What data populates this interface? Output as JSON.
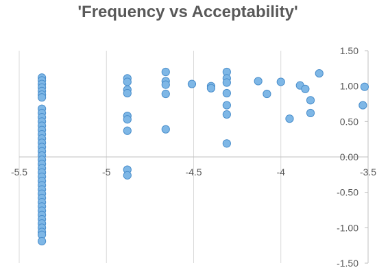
{
  "chart_data": {
    "type": "scatter",
    "title": "'Frequency vs Acceptability'",
    "xlabel": "",
    "ylabel": "",
    "xlim": [
      -5.5,
      -3.5
    ],
    "ylim": [
      -1.5,
      1.5
    ],
    "x_ticks": [
      -5.5,
      -5,
      -4.5,
      -4,
      -3.5
    ],
    "x_tick_labels": [
      "-5.5",
      "-5",
      "-4.5",
      "-4",
      "-3.5"
    ],
    "y_ticks": [
      1.5,
      1.0,
      0.5,
      0.0,
      -0.5,
      -1.0,
      -1.5
    ],
    "y_tick_labels": [
      "1.50",
      "1.00",
      "0.50",
      "0.00",
      "-0.50",
      "-1.00",
      "-1.50"
    ],
    "grid": "vertical",
    "legend": "none",
    "marker_color": "#7eb7e6",
    "marker_edge": "#4a8ecb",
    "series": [
      {
        "points": [
          [
            -5.37,
            1.12
          ],
          [
            -5.37,
            1.08
          ],
          [
            -5.37,
            1.03
          ],
          [
            -5.37,
            0.98
          ],
          [
            -5.37,
            0.93
          ],
          [
            -5.37,
            0.88
          ],
          [
            -5.37,
            0.84
          ],
          [
            -5.37,
            0.68
          ],
          [
            -5.37,
            0.62
          ],
          [
            -5.37,
            0.56
          ],
          [
            -5.37,
            0.5
          ],
          [
            -5.37,
            0.44
          ],
          [
            -5.37,
            0.38
          ],
          [
            -5.37,
            0.32
          ],
          [
            -5.37,
            0.26
          ],
          [
            -5.37,
            0.2
          ],
          [
            -5.37,
            0.14
          ],
          [
            -5.37,
            0.08
          ],
          [
            -5.37,
            0.02
          ],
          [
            -5.37,
            -0.04
          ],
          [
            -5.37,
            -0.1
          ],
          [
            -5.37,
            -0.16
          ],
          [
            -5.37,
            -0.22
          ],
          [
            -5.37,
            -0.28
          ],
          [
            -5.37,
            -0.34
          ],
          [
            -5.37,
            -0.4
          ],
          [
            -5.37,
            -0.46
          ],
          [
            -5.37,
            -0.52
          ],
          [
            -5.37,
            -0.58
          ],
          [
            -5.37,
            -0.64
          ],
          [
            -5.37,
            -0.7
          ],
          [
            -5.37,
            -0.76
          ],
          [
            -5.37,
            -0.82
          ],
          [
            -5.37,
            -0.88
          ],
          [
            -5.37,
            -0.94
          ],
          [
            -5.37,
            -1.0
          ],
          [
            -5.37,
            -1.06
          ],
          [
            -5.37,
            -1.1
          ],
          [
            -5.37,
            -1.19
          ],
          [
            -4.88,
            1.11
          ],
          [
            -4.88,
            1.06
          ],
          [
            -4.88,
            0.95
          ],
          [
            -4.88,
            0.9
          ],
          [
            -4.88,
            0.58
          ],
          [
            -4.88,
            0.53
          ],
          [
            -4.88,
            0.37
          ],
          [
            -4.88,
            -0.18
          ],
          [
            -4.88,
            -0.26
          ],
          [
            -4.66,
            1.2
          ],
          [
            -4.66,
            1.07
          ],
          [
            -4.66,
            1.02
          ],
          [
            -4.66,
            0.89
          ],
          [
            -4.66,
            0.39
          ],
          [
            -4.51,
            1.03
          ],
          [
            -4.4,
            1.0
          ],
          [
            -4.4,
            0.97
          ],
          [
            -4.31,
            1.2
          ],
          [
            -4.31,
            1.11
          ],
          [
            -4.31,
            1.05
          ],
          [
            -4.31,
            0.9
          ],
          [
            -4.31,
            0.73
          ],
          [
            -4.31,
            0.6
          ],
          [
            -4.31,
            0.19
          ],
          [
            -4.13,
            1.07
          ],
          [
            -4.08,
            0.89
          ],
          [
            -4.0,
            1.06
          ],
          [
            -3.95,
            0.54
          ],
          [
            -3.89,
            1.01
          ],
          [
            -3.86,
            0.96
          ],
          [
            -3.83,
            0.8
          ],
          [
            -3.83,
            0.62
          ],
          [
            -3.78,
            1.18
          ],
          [
            -3.52,
            0.99
          ],
          [
            -3.53,
            0.73
          ]
        ]
      }
    ]
  }
}
